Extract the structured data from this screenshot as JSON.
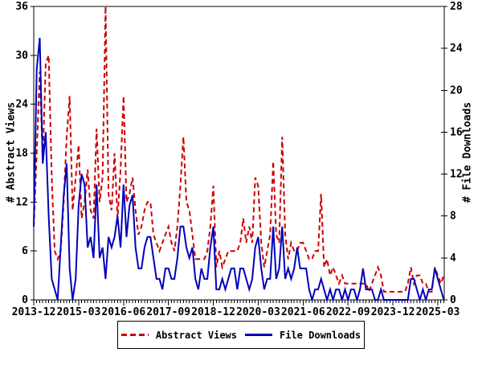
{
  "chart_data": {
    "type": "line",
    "title": "",
    "x_start_month": "2013-12",
    "x_end_month": "2025-05",
    "months_count": 138,
    "x_tick_labels": [
      "2013-12",
      "2015-03",
      "2016-06",
      "2017-09",
      "2018-12",
      "2020-03",
      "2021-06",
      "2022-09",
      "2023-12",
      "2025-03"
    ],
    "x_major_tick_interval_months": 15,
    "grid": "off",
    "legend_position": "bottom",
    "left_axis": {
      "label": "# Abstract Views",
      "min": 0,
      "max": 36,
      "tick_step": 6,
      "ticks": [
        0,
        6,
        12,
        18,
        24,
        30,
        36
      ]
    },
    "right_axis": {
      "label": "# File Downloads",
      "min": 0,
      "max": 28,
      "tick_step": 4,
      "ticks": [
        0,
        4,
        8,
        12,
        16,
        20,
        24,
        28
      ]
    },
    "series": [
      {
        "name": "Abstract Views",
        "axis": "left",
        "color": "#cc0000",
        "style": "dashed",
        "values": [
          9,
          18,
          28,
          17,
          29,
          30,
          15,
          6,
          5,
          6,
          12,
          20,
          25,
          11,
          15,
          19,
          10,
          12,
          16,
          11,
          10,
          21,
          12,
          15,
          36,
          13,
          11,
          18,
          10,
          16,
          25,
          12,
          13,
          15,
          11,
          8,
          9,
          11,
          12,
          12,
          8,
          7,
          6,
          7,
          8,
          9,
          7,
          6,
          9,
          14,
          20,
          12,
          11,
          8,
          5,
          5,
          5,
          5,
          6,
          9,
          14,
          4,
          6,
          4,
          5,
          6,
          6,
          6,
          6,
          7,
          10,
          7,
          9,
          7,
          15,
          14,
          7,
          4,
          6,
          8,
          17,
          8,
          7,
          20,
          8,
          5,
          7,
          6,
          6,
          7,
          7,
          6,
          5,
          5,
          6,
          6,
          13,
          4,
          5,
          3,
          4,
          3,
          2,
          3,
          2,
          2,
          2,
          2,
          2,
          2,
          2,
          2,
          1,
          2,
          3,
          4,
          3,
          1,
          1,
          1,
          1,
          1,
          1,
          1,
          1,
          2,
          4,
          2,
          3,
          3,
          2,
          2,
          1,
          1,
          4,
          3,
          2,
          3
        ]
      },
      {
        "name": "File Downloads",
        "axis": "right",
        "color": "#0000bb",
        "style": "solid",
        "values": [
          7,
          22,
          25,
          13,
          16,
          8,
          2,
          1,
          0,
          5,
          10,
          13,
          3,
          0,
          2,
          9,
          12,
          11,
          5,
          6,
          4,
          11,
          4,
          5,
          2,
          6,
          5,
          6,
          8,
          5,
          11,
          6,
          9,
          10,
          5,
          3,
          3,
          5,
          6,
          6,
          4,
          2,
          2,
          1,
          3,
          3,
          2,
          2,
          4,
          7,
          7,
          5,
          4,
          5,
          2,
          1,
          3,
          2,
          2,
          5,
          7,
          1,
          1,
          2,
          1,
          2,
          3,
          3,
          1,
          3,
          3,
          2,
          1,
          2,
          5,
          6,
          3,
          1,
          2,
          2,
          7,
          2,
          3,
          7,
          2,
          3,
          2,
          3,
          5,
          3,
          3,
          3,
          1,
          0,
          1,
          1,
          2,
          1,
          0,
          1,
          0,
          1,
          1,
          0,
          1,
          0,
          1,
          1,
          0,
          1,
          3,
          1,
          1,
          1,
          0,
          0,
          1,
          0,
          0,
          0,
          0,
          0,
          0,
          0,
          0,
          0,
          2,
          2,
          1,
          0,
          1,
          0,
          1,
          1,
          3,
          2,
          1,
          0
        ]
      }
    ]
  },
  "colors": {
    "axis": "#000000",
    "background": "#ffffff",
    "abstract_views": "#cc0000",
    "file_downloads": "#0000bb"
  }
}
